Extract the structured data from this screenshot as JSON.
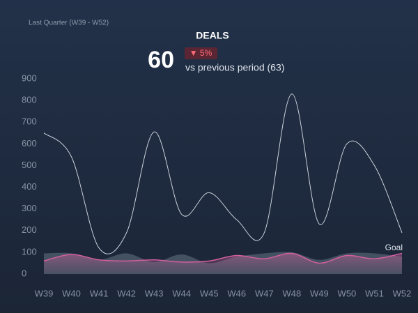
{
  "header": {
    "period": "Last Quarter (W39 - W52)",
    "title": "DEALS",
    "kpi": "60",
    "change": "▼ 5%",
    "comparison": "vs previous period (63)"
  },
  "chart_data": {
    "type": "line",
    "categories": [
      "W39",
      "W40",
      "W41",
      "W42",
      "W43",
      "W44",
      "W45",
      "W46",
      "W47",
      "W48",
      "W49",
      "W50",
      "W51",
      "W52"
    ],
    "series": [
      {
        "kind": "area",
        "color": "#7f919e",
        "values": [
          95,
          95,
          65,
          95,
          55,
          90,
          50,
          80,
          95,
          100,
          65,
          95,
          95,
          80
        ]
      },
      {
        "kind": "line",
        "color": "#d25fa0",
        "values": [
          60,
          90,
          65,
          60,
          65,
          55,
          60,
          85,
          70,
          95,
          50,
          85,
          70,
          95
        ]
      },
      {
        "name": "Goal",
        "kind": "line",
        "color": "#c9d1da",
        "values": [
          650,
          540,
          120,
          190,
          655,
          275,
          375,
          250,
          190,
          830,
          230,
          600,
          500,
          190
        ]
      }
    ],
    "ylim": [
      0,
      900
    ],
    "yticks": [
      0,
      100,
      200,
      300,
      400,
      500,
      600,
      700,
      800,
      900
    ]
  }
}
